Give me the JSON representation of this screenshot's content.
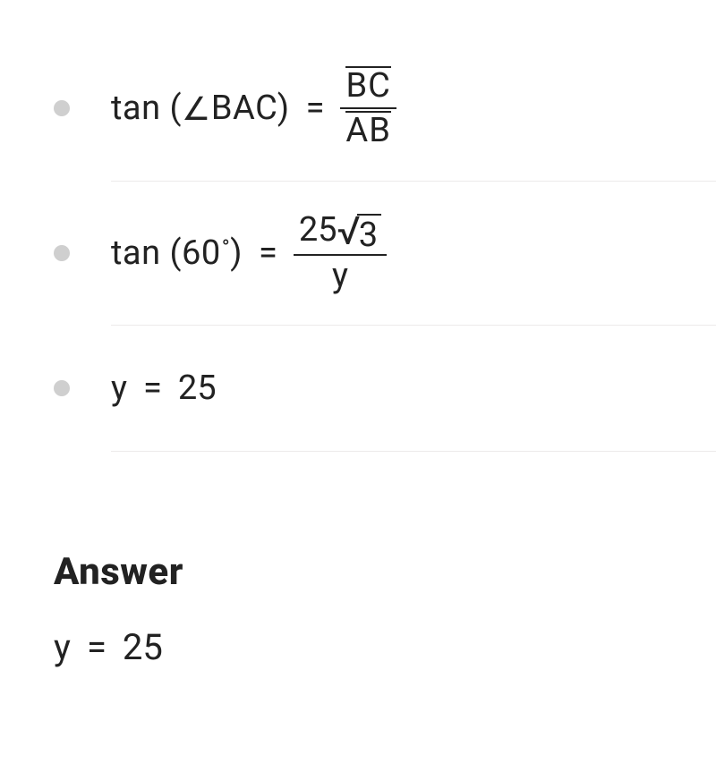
{
  "colors": {
    "text": "#222222",
    "bullet": "#cfcfcf",
    "divider": "#eceaea",
    "background": "#ffffff",
    "rule": "#222222"
  },
  "typography": {
    "math_fontsize": 38,
    "heading_fontsize": 42,
    "heading_weight": 800,
    "final_fontsize": 40
  },
  "symbols": {
    "tan": "tan",
    "angle": "∠",
    "degree": "°",
    "equals": "=",
    "radical": "√"
  },
  "steps": [
    {
      "lhs_fn": "tan",
      "lhs_arg_angle": "BAC",
      "rhs_type": "segment_fraction",
      "rhs_num_segment": "BC",
      "rhs_den_segment": "AB"
    },
    {
      "lhs_fn": "tan",
      "lhs_arg_degrees": "60",
      "rhs_type": "value_fraction",
      "rhs_num_coeff": "25",
      "rhs_num_radicand": "3",
      "rhs_den": "y"
    },
    {
      "plain_lhs": "y",
      "plain_rhs": "25"
    }
  ],
  "answer": {
    "heading": "Answer",
    "lhs": "y",
    "rhs": "25"
  }
}
